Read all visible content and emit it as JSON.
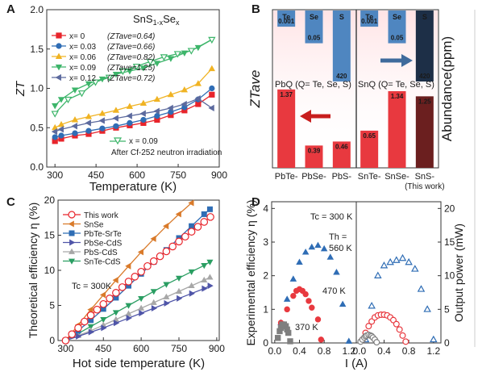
{
  "chart_data": [
    {
      "panel": "A",
      "type": "line",
      "title": "SnS1-xSex",
      "xlabel": "Temperature (K)",
      "ylabel": "ZT",
      "xlim": [
        270,
        900
      ],
      "ylim": [
        0,
        2.0
      ],
      "xticks": [
        "300",
        "450",
        "600",
        "750",
        "900"
      ],
      "yticks": [
        "0.0",
        "0.5",
        "1.0",
        "1.5",
        "2.0"
      ],
      "legend_position": "top-left",
      "series": [
        {
          "name": "x= 0",
          "note": "(ZTave=0.64)",
          "color": "#e8242b",
          "marker": "square",
          "x": [
            300,
            323,
            373,
            423,
            473,
            523,
            573,
            623,
            673,
            723,
            773,
            823,
            873
          ],
          "y": [
            0.33,
            0.36,
            0.4,
            0.42,
            0.46,
            0.5,
            0.53,
            0.56,
            0.6,
            0.66,
            0.72,
            0.8,
            0.92
          ]
        },
        {
          "name": "x= 0.03",
          "note": "(ZTave=0.66)",
          "color": "#2f6db5",
          "marker": "circle",
          "x": [
            300,
            323,
            373,
            423,
            473,
            523,
            573,
            623,
            673,
            723,
            773,
            823,
            873
          ],
          "y": [
            0.38,
            0.4,
            0.43,
            0.46,
            0.49,
            0.52,
            0.56,
            0.6,
            0.65,
            0.7,
            0.76,
            0.86,
            1.0
          ]
        },
        {
          "name": "x= 0.06",
          "note": "(ZTave=0.82)",
          "color": "#f0b323",
          "marker": "triangle-up",
          "x": [
            300,
            323,
            373,
            423,
            473,
            523,
            573,
            623,
            673,
            723,
            773,
            823,
            873
          ],
          "y": [
            0.5,
            0.54,
            0.6,
            0.64,
            0.68,
            0.72,
            0.77,
            0.81,
            0.86,
            0.92,
            0.98,
            1.06,
            1.25
          ]
        },
        {
          "name": "x= 0.09",
          "note": "(ZTave=1.25)",
          "color": "#3db56a",
          "marker": "triangle-down",
          "x": [
            300,
            323,
            373,
            423,
            473,
            523,
            573,
            623,
            673,
            723,
            773,
            823,
            873
          ],
          "y": [
            0.78,
            0.86,
            0.98,
            1.06,
            1.12,
            1.18,
            1.22,
            1.26,
            1.32,
            1.38,
            1.45,
            1.52,
            1.62
          ]
        },
        {
          "name": "x= 0.12",
          "note": "(ZTave=0.72)",
          "color": "#5c6a9e",
          "marker": "triangle-left",
          "x": [
            300,
            323,
            373,
            423,
            473,
            523,
            573,
            623,
            673,
            723,
            773,
            823,
            873
          ],
          "y": [
            0.45,
            0.48,
            0.52,
            0.56,
            0.59,
            0.62,
            0.65,
            0.68,
            0.71,
            0.75,
            0.8,
            0.87,
            0.75
          ]
        },
        {
          "name": "x = 0.09",
          "note": "After Cf-252 neutron irradiation",
          "color": "#3db56a",
          "marker": "triangle-down-open",
          "x": [
            300,
            348,
            398,
            448,
            498,
            548,
            598,
            648,
            698,
            748,
            798,
            873
          ],
          "y": [
            0.68,
            0.86,
            0.94,
            1.08,
            1.14,
            1.22,
            1.28,
            1.34,
            1.4,
            1.44,
            1.48,
            1.62
          ]
        }
      ]
    },
    {
      "panel": "B",
      "type": "bar",
      "ylabel_left": "ZTave",
      "ylabel_right": "Abundance(ppm)",
      "group_labels": [
        "PbQ (Q= Te, Se, S)",
        "SnQ (Q= Te, Se, S)"
      ],
      "categories": [
        "PbTe-",
        "PbSe-",
        "PbS-",
        "SnTe-",
        "SnSe-",
        "SnS-"
      ],
      "category_notes": [
        "",
        "",
        "",
        "",
        "",
        "(This work)"
      ],
      "zt_values": [
        1.37,
        0.39,
        0.46,
        0.65,
        1.34,
        1.25
      ],
      "zt_labels": [
        "1.37",
        "0.39",
        "0.46",
        "0.65",
        "1.34",
        "1.25"
      ],
      "abundance_elements": [
        "Te",
        "Se",
        "S",
        "Te",
        "Se",
        "S"
      ],
      "abundance_values": [
        0.001,
        0.05,
        420,
        0.001,
        0.05,
        420
      ],
      "abundance_labels": [
        "0.001",
        "0.05",
        "420",
        "0.001",
        "0.05",
        "420"
      ],
      "colors": {
        "zt": "#e8393f",
        "zt_this_work": "#6b1f1f",
        "abundance": "#4f86c0",
        "abundance_this_work": "#1d2f47",
        "left_axis": "#e83a3a",
        "right_axis": "#5b8fc7"
      }
    },
    {
      "panel": "C",
      "type": "line",
      "xlabel": "Hot side temperature (K)",
      "ylabel": "Theoretical efficiency η (%)",
      "xlim": [
        270,
        910
      ],
      "ylim": [
        0,
        20
      ],
      "xticks": [
        "300",
        "450",
        "600",
        "750",
        "900"
      ],
      "yticks": [
        "0",
        "5",
        "10",
        "15",
        "20"
      ],
      "annotation": "Tc = 300K",
      "legend_position": "top-left",
      "series": [
        {
          "name": "This work",
          "color": "#e8242b",
          "marker": "circle-open",
          "x": [
            300,
            325,
            350,
            375,
            400,
            425,
            450,
            475,
            500,
            525,
            550,
            575,
            600,
            625,
            650,
            675,
            700,
            725,
            750,
            775,
            800,
            825,
            850,
            875
          ],
          "y": [
            0.0,
            0.9,
            1.8,
            2.7,
            3.6,
            4.4,
            5.2,
            6.0,
            6.8,
            7.6,
            8.4,
            9.1,
            9.8,
            10.6,
            11.3,
            12.0,
            12.7,
            13.4,
            14.1,
            14.8,
            15.5,
            16.2,
            16.9,
            17.6
          ]
        },
        {
          "name": "SnSe",
          "color": "#d97a2a",
          "marker": "triangle-left",
          "x": [
            300,
            350,
            400,
            450,
            500,
            550,
            600,
            650,
            700,
            750,
            800
          ],
          "y": [
            0.0,
            2.2,
            4.4,
            6.5,
            8.6,
            10.6,
            12.6,
            14.5,
            16.3,
            18.0,
            19.6
          ]
        },
        {
          "name": "PbTe-SrTe",
          "color": "#2f6db5",
          "marker": "square",
          "x": [
            300,
            350,
            400,
            450,
            500,
            550,
            600,
            650,
            700,
            750,
            800,
            850,
            873
          ],
          "y": [
            0.0,
            1.4,
            2.9,
            4.5,
            6.1,
            7.8,
            9.5,
            11.2,
            12.9,
            14.6,
            16.3,
            18.0,
            18.7
          ]
        },
        {
          "name": "PbSe-CdS",
          "color": "#4f55a8",
          "marker": "triangle-right",
          "x": [
            300,
            350,
            400,
            450,
            500,
            550,
            600,
            650,
            700,
            750,
            800,
            850,
            873
          ],
          "y": [
            0.0,
            0.6,
            1.2,
            1.8,
            2.5,
            3.2,
            3.9,
            4.6,
            5.3,
            6.0,
            6.7,
            7.4,
            7.8
          ]
        },
        {
          "name": "PbS-CdS",
          "color": "#a7a7a7",
          "marker": "triangle-up",
          "x": [
            300,
            350,
            400,
            450,
            500,
            550,
            600,
            650,
            700,
            750,
            800,
            850,
            873
          ],
          "y": [
            0.0,
            0.7,
            1.4,
            2.2,
            3.0,
            3.8,
            4.6,
            5.4,
            6.2,
            7.0,
            7.8,
            8.6,
            9.0
          ]
        },
        {
          "name": "SnTe-CdS",
          "color": "#2a9e62",
          "marker": "triangle-down",
          "x": [
            300,
            350,
            400,
            450,
            500,
            550,
            600,
            650,
            700,
            750,
            800,
            850,
            873
          ],
          "y": [
            0.0,
            1.0,
            2.0,
            3.0,
            4.0,
            5.0,
            6.0,
            7.0,
            8.0,
            8.9,
            9.8,
            10.7,
            11.2
          ]
        }
      ]
    },
    {
      "panel": "D",
      "type": "scatter",
      "xlabel": "I (A)",
      "ylabel_left": "Experimental efficiency η (%)",
      "ylabel_right": "Output power (mW)",
      "xticks": [
        "0.0",
        "0.4",
        "0.8",
        "1.2"
      ],
      "yticks_left": [
        "0",
        "1",
        "2",
        "3",
        "4"
      ],
      "yticks_right": [
        "0",
        "5",
        "10",
        "15",
        "20"
      ],
      "ylim_left": [
        0,
        4.2
      ],
      "ylim_right": [
        0,
        21
      ],
      "annotations": [
        "Tc = 300 K",
        "Th = 560 K",
        "470 K",
        "370 K"
      ],
      "efficiency": [
        {
          "name": "Th = 560 K",
          "color": "#2f6db5",
          "marker": "triangle-up",
          "x": [
            0.1,
            0.2,
            0.3,
            0.4,
            0.5,
            0.6,
            0.7,
            0.8,
            0.9,
            1.0,
            1.1,
            1.2
          ],
          "y": [
            0.6,
            1.3,
            1.9,
            2.4,
            2.7,
            2.85,
            2.9,
            2.8,
            2.55,
            2.1,
            1.15,
            0.05
          ]
        },
        {
          "name": "470 K",
          "color": "#e8393f",
          "marker": "circle",
          "x": [
            0.1,
            0.15,
            0.2,
            0.3,
            0.35,
            0.4,
            0.45,
            0.5,
            0.55,
            0.6,
            0.7,
            0.75
          ],
          "y": [
            0.6,
            0.55,
            1.0,
            1.4,
            1.55,
            1.6,
            1.55,
            1.45,
            1.25,
            1.05,
            0.7,
            0.1
          ]
        },
        {
          "name": "370 K",
          "color": "#7f7f7f",
          "marker": "square",
          "x": [
            0.05,
            0.08,
            0.1,
            0.12,
            0.15,
            0.18,
            0.2,
            0.22,
            0.25
          ],
          "y": [
            0.15,
            0.35,
            0.45,
            0.55,
            0.55,
            0.5,
            0.4,
            0.3,
            0.05
          ]
        }
      ],
      "power": [
        {
          "name": "Th = 560 K",
          "color": "#2f6db5",
          "marker": "triangle-up-open",
          "x": [
            0.1,
            0.2,
            0.3,
            0.4,
            0.5,
            0.6,
            0.7,
            0.8,
            0.9,
            1.0,
            1.1,
            1.2
          ],
          "y": [
            0.5,
            5.5,
            10,
            11.5,
            12,
            12.3,
            12.6,
            12,
            11,
            8,
            5,
            0.5
          ]
        },
        {
          "name": "470 K",
          "color": "#e8393f",
          "marker": "circle-open",
          "x": [
            0.05,
            0.1,
            0.15,
            0.2,
            0.25,
            0.3,
            0.35,
            0.4,
            0.45,
            0.5,
            0.55,
            0.6,
            0.65,
            0.7,
            0.75
          ],
          "y": [
            0.5,
            1.5,
            2.5,
            3.2,
            3.8,
            4.1,
            4.2,
            4.2,
            4.1,
            3.8,
            3.4,
            2.8,
            2.0,
            1.1,
            0.2
          ]
        },
        {
          "name": "370 K",
          "color": "#7f7f7f",
          "marker": "circle-open",
          "x": [
            0.02,
            0.05,
            0.08,
            0.1,
            0.12,
            0.15,
            0.18,
            0.2,
            0.22,
            0.25,
            0.28
          ],
          "y": [
            0.2,
            0.5,
            0.8,
            1.0,
            1.1,
            1.2,
            1.1,
            1.0,
            0.8,
            0.5,
            0.1
          ]
        }
      ]
    }
  ],
  "panels": {
    "a": {
      "letter": "A",
      "title_main": "SnS",
      "title_sub1": "1-x",
      "title_mid": "Se",
      "title_sub2": "x",
      "footnote_legend": "x = 0.09",
      "footnote": "After Cf-252 neutron irradiation"
    },
    "b": {
      "letter": "B"
    },
    "c": {
      "letter": "C",
      "annot": "Tc = 300K"
    },
    "d": {
      "letter": "D",
      "tc_annot": "Tc = 300 K",
      "th_annot_1": "Th =",
      "th_annot_2": "560 K",
      "annot_470": "470 K",
      "annot_370": "370 K"
    }
  }
}
